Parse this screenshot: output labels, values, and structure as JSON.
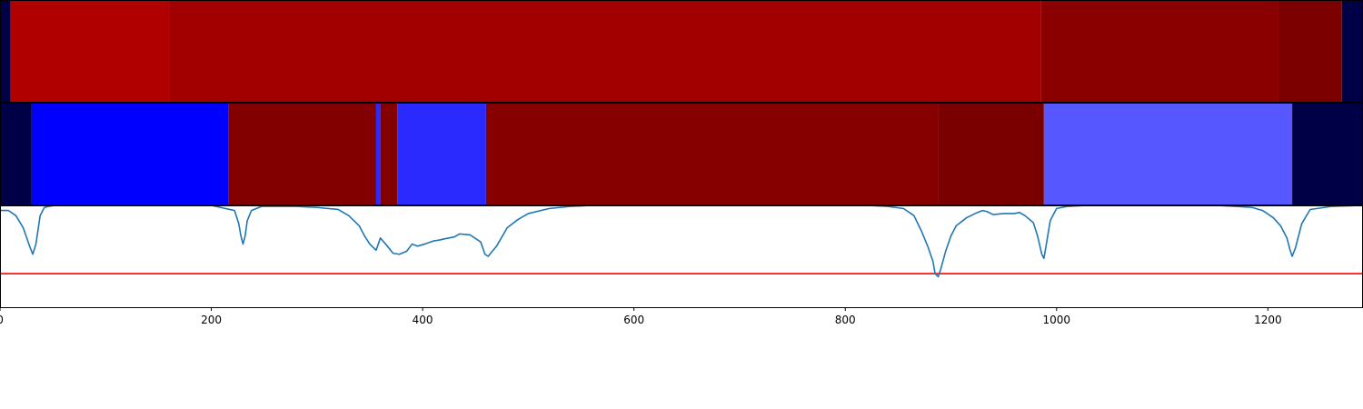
{
  "chart_data": [
    {
      "type": "heatmap",
      "segments": [
        {
          "start": 0,
          "end": 10,
          "color": "#000046"
        },
        {
          "start": 10,
          "end": 160,
          "color": "#b00000"
        },
        {
          "start": 160,
          "end": 985,
          "color": "#a20000"
        },
        {
          "start": 985,
          "end": 1210,
          "color": "#8a0000"
        },
        {
          "start": 1210,
          "end": 1270,
          "color": "#7c0000"
        },
        {
          "start": 1270,
          "end": 1290,
          "color": "#000046"
        }
      ]
    },
    {
      "type": "heatmap",
      "segments": [
        {
          "start": 0,
          "end": 30,
          "color": "#000046"
        },
        {
          "start": 30,
          "end": 216,
          "color": "#0000ff"
        },
        {
          "start": 216,
          "end": 356,
          "color": "#820000"
        },
        {
          "start": 356,
          "end": 360,
          "color": "#2a2aff"
        },
        {
          "start": 360,
          "end": 376,
          "color": "#820000"
        },
        {
          "start": 376,
          "end": 460,
          "color": "#2a2aff"
        },
        {
          "start": 460,
          "end": 888,
          "color": "#870000"
        },
        {
          "start": 888,
          "end": 988,
          "color": "#7a0000"
        },
        {
          "start": 988,
          "end": 1223,
          "color": "#5757ff"
        },
        {
          "start": 1223,
          "end": 1290,
          "color": "#000046"
        }
      ]
    },
    {
      "type": "line",
      "x": [
        0,
        8,
        15,
        22,
        28,
        31,
        34,
        38,
        42,
        46,
        52,
        65,
        80,
        100,
        150,
        200,
        222,
        226,
        228,
        230,
        232,
        234,
        238,
        245,
        248,
        255,
        265,
        280,
        300,
        320,
        330,
        340,
        345,
        350,
        356,
        358,
        360,
        365,
        372,
        378,
        385,
        390,
        395,
        402,
        410,
        416,
        420,
        425,
        430,
        435,
        445,
        455,
        459,
        462,
        470,
        480,
        490,
        500,
        520,
        540,
        560,
        600,
        650,
        700,
        750,
        800,
        820,
        840,
        855,
        865,
        872,
        878,
        883,
        885,
        888,
        890,
        895,
        900,
        905,
        915,
        925,
        930,
        934,
        940,
        950,
        960,
        965,
        970,
        978,
        982,
        986,
        988,
        990,
        994,
        1000,
        1010,
        1030,
        1060,
        1100,
        1150,
        1170,
        1185,
        1195,
        1205,
        1212,
        1218,
        1221,
        1223,
        1226,
        1232,
        1240,
        1260,
        1290
      ],
      "y": [
        0.95,
        0.95,
        0.9,
        0.78,
        0.6,
        0.52,
        0.62,
        0.9,
        0.98,
        0.99,
        1.0,
        1.0,
        1.0,
        1.0,
        1.0,
        1.0,
        0.95,
        0.82,
        0.7,
        0.62,
        0.7,
        0.85,
        0.95,
        0.98,
        0.99,
        0.99,
        0.99,
        0.99,
        0.98,
        0.96,
        0.9,
        0.8,
        0.7,
        0.62,
        0.56,
        0.62,
        0.68,
        0.62,
        0.53,
        0.52,
        0.55,
        0.62,
        0.6,
        0.62,
        0.65,
        0.66,
        0.67,
        0.68,
        0.69,
        0.72,
        0.71,
        0.64,
        0.52,
        0.5,
        0.6,
        0.78,
        0.86,
        0.92,
        0.97,
        0.99,
        1.0,
        1.0,
        1.0,
        1.0,
        1.0,
        1.0,
        1.0,
        0.99,
        0.97,
        0.9,
        0.75,
        0.6,
        0.45,
        0.33,
        0.3,
        0.36,
        0.55,
        0.7,
        0.8,
        0.88,
        0.93,
        0.95,
        0.94,
        0.91,
        0.92,
        0.92,
        0.93,
        0.9,
        0.83,
        0.7,
        0.52,
        0.48,
        0.6,
        0.85,
        0.97,
        0.99,
        1.0,
        1.0,
        1.0,
        1.0,
        0.99,
        0.98,
        0.95,
        0.88,
        0.8,
        0.68,
        0.56,
        0.5,
        0.58,
        0.82,
        0.96,
        0.99,
        1.0
      ],
      "threshold": 0.33,
      "line_color": "#1f77b4",
      "threshold_color": "#ff0000",
      "xlim": [
        0,
        1290
      ],
      "ylim": [
        0.0,
        1.0
      ],
      "xticks": [
        0,
        200,
        400,
        600,
        800,
        1000,
        1200
      ],
      "xtick_labels": [
        "0",
        "200",
        "400",
        "600",
        "800",
        "1000",
        "1200"
      ]
    }
  ]
}
